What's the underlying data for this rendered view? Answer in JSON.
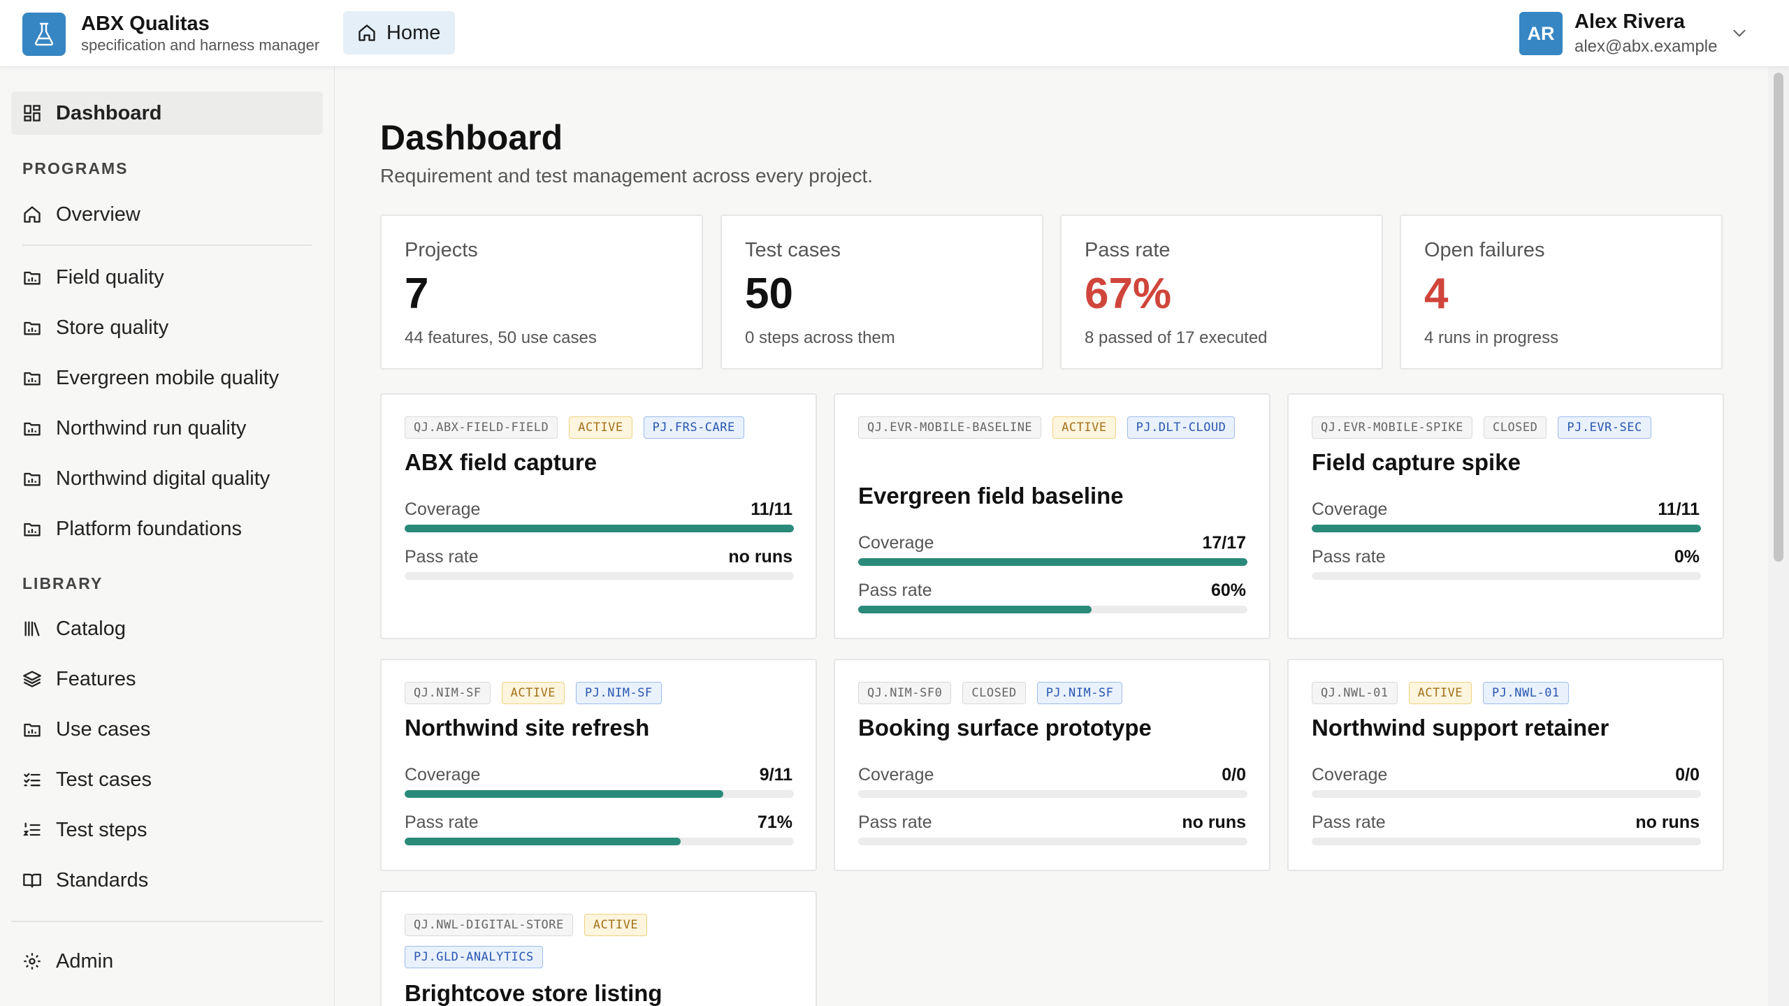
{
  "header": {
    "app_title": "ABX Qualitas",
    "app_subtitle": "specification and harness manager",
    "home_label": "Home",
    "user": {
      "initials": "AR",
      "name": "Alex Rivera",
      "email": "alex@abx.example"
    },
    "colors": {
      "brand": "#3686c3",
      "home_bg": "#e4eff7"
    }
  },
  "sidebar": {
    "dashboard": "Dashboard",
    "programs_label": "PROGRAMS",
    "overview": "Overview",
    "programs": [
      "Field quality",
      "Store quality",
      "Evergreen mobile quality",
      "Northwind run quality",
      "Northwind digital quality",
      "Platform foundations"
    ],
    "library_label": "LIBRARY",
    "library": [
      "Catalog",
      "Features",
      "Use cases",
      "Test cases",
      "Test steps",
      "Standards"
    ],
    "admin": "Admin"
  },
  "main": {
    "title": "Dashboard",
    "subtitle": "Requirement and test management across every project.",
    "stats": [
      {
        "label": "Projects",
        "value": "7",
        "note": "44 features, 50 use cases"
      },
      {
        "label": "Test cases",
        "value": "50",
        "note": "0 steps across them"
      },
      {
        "label": "Pass rate",
        "value": "67%",
        "note": "8 passed of 17 executed"
      },
      {
        "label": "Open failures",
        "value": "4",
        "note": "4 runs in progress"
      }
    ],
    "coverage_label": "Coverage",
    "pass_rate_label": "Pass rate",
    "cards": [
      {
        "code": "QJ.ABX-FIELD-FIELD",
        "status": "ACTIVE",
        "project": "PJ.FRS-CARE",
        "title": "ABX field capture",
        "coverage": "11/11",
        "coverage_fraction": 1.0,
        "pass_rate": "no runs",
        "pass_fraction": 0
      },
      {
        "code": "QJ.EVR-MOBILE-BASELINE",
        "status": "ACTIVE",
        "project": "PJ.DLT-CLOUD",
        "title": "Evergreen field baseline",
        "coverage": "17/17",
        "coverage_fraction": 1.0,
        "pass_rate": "60%",
        "pass_fraction": 0.6
      },
      {
        "code": "QJ.EVR-MOBILE-SPIKE",
        "status": "CLOSED",
        "project": "PJ.EVR-SEC",
        "title": "Field capture spike",
        "coverage": "11/11",
        "coverage_fraction": 1.0,
        "pass_rate": "0%",
        "pass_fraction": 0
      },
      {
        "code": "QJ.NIM-SF",
        "status": "ACTIVE",
        "project": "PJ.NIM-SF",
        "title": "Northwind site refresh",
        "coverage": "9/11",
        "coverage_fraction": 0.818,
        "pass_rate": "71%",
        "pass_fraction": 0.71
      },
      {
        "code": "QJ.NIM-SF0",
        "status": "CLOSED",
        "project": "PJ.NIM-SF",
        "title": "Booking surface prototype",
        "coverage": "0/0",
        "coverage_fraction": 0,
        "pass_rate": "no runs",
        "pass_fraction": 0
      },
      {
        "code": "QJ.NWL-01",
        "status": "ACTIVE",
        "project": "PJ.NWL-01",
        "title": "Northwind support retainer",
        "coverage": "0/0",
        "coverage_fraction": 0,
        "pass_rate": "no runs",
        "pass_fraction": 0
      },
      {
        "code": "QJ.NWL-DIGITAL-STORE",
        "status": "ACTIVE",
        "project": "PJ.GLD-ANALYTICS",
        "title": "Brightcove store listing"
      }
    ],
    "colors": {
      "bar_fill": "#2a8a7a",
      "danger": "#d0453b"
    }
  }
}
